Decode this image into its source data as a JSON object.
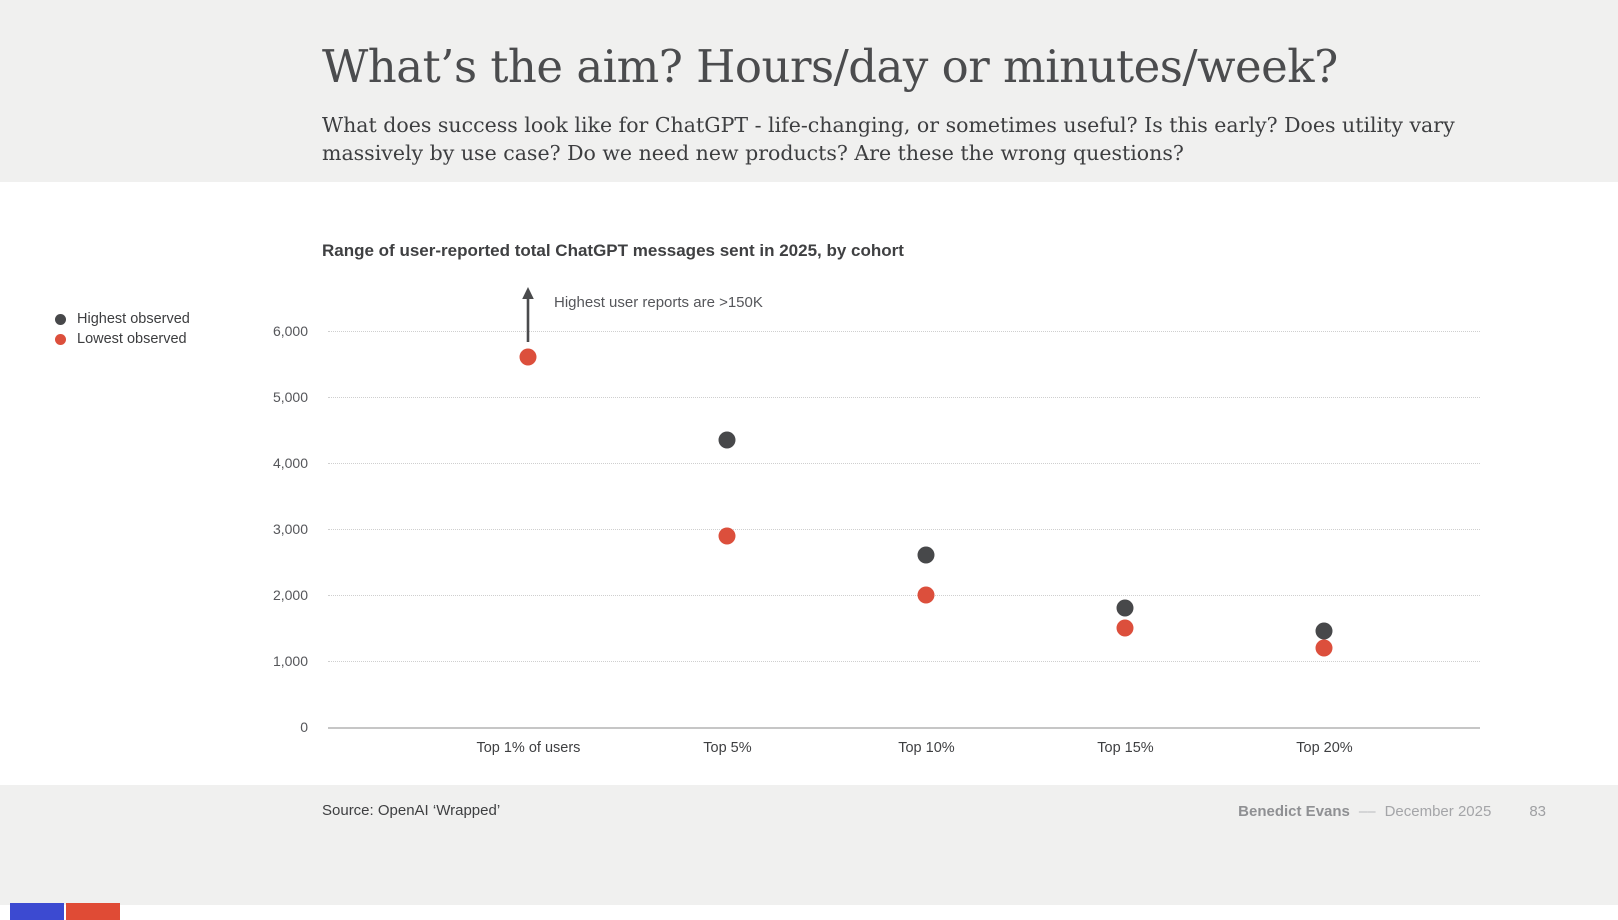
{
  "header": {
    "title": "What’s the aim? Hours/day or minutes/week?",
    "subtitle": "What does success look like for ChatGPT - life-changing, or sometimes useful? Is this early? Does utility vary massively by use case? Do we need new products? Are these the wrong questions?"
  },
  "chart_data": {
    "type": "scatter",
    "title": "Range of user-reported total ChatGPT messages sent in 2025, by cohort",
    "categories": [
      "Top 1% of users",
      "Top 5%",
      "Top 10%",
      "Top 15%",
      "Top 20%"
    ],
    "series": [
      {
        "name": "Highest observed",
        "color": "#47484a",
        "values": [
          null,
          4350,
          2600,
          1800,
          1450
        ]
      },
      {
        "name": "Lowest observed",
        "color": "#dc4f3c",
        "values": [
          5600,
          2900,
          2000,
          1500,
          1200
        ]
      }
    ],
    "annotation": {
      "text": "Highest user reports are >150K",
      "category": "Top 1% of users",
      "meaning": "highest observed value for Top 1% is above the chart scale"
    },
    "ylim": [
      0,
      6000
    ],
    "yticks": [
      0,
      1000,
      2000,
      3000,
      4000,
      5000,
      6000
    ],
    "ytick_labels": [
      "0",
      "1,000",
      "2,000",
      "3,000",
      "4,000",
      "5,000",
      "6,000"
    ],
    "grid": "horizontal dotted",
    "legend_position": "left"
  },
  "footer": {
    "source": "Source: OpenAI ‘Wrapped’",
    "author": "Benedict Evans",
    "separator": "––",
    "date": "December 2025",
    "page": "83"
  },
  "colors": {
    "band_bg": "#f0f0ef",
    "highest_dot": "#47484a",
    "lowest_dot": "#dc4f3c",
    "brand_blue": "#3c4ad1",
    "brand_red": "#e04b35",
    "arrow": "#4a4b4d"
  }
}
